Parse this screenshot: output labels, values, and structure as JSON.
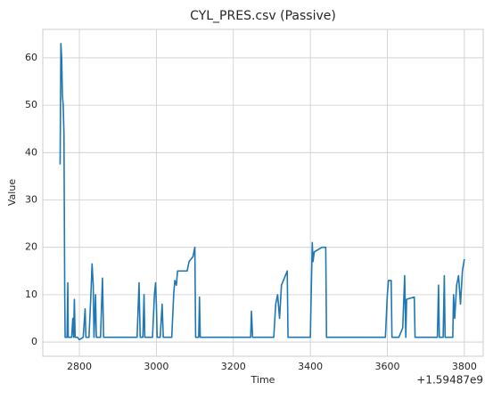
{
  "chart_data": {
    "type": "line",
    "title": "CYL_PRES.csv (Passive)",
    "x_label": "Time",
    "y_label": "Value",
    "x_offset_label": "+1.59487e9",
    "x": [
      2750,
      2752,
      2754,
      2756,
      2758,
      2760,
      2762,
      2763,
      2768,
      2770,
      2771,
      2780,
      2783,
      2785,
      2787,
      2789,
      2795,
      2800,
      2810,
      2815,
      2817,
      2825,
      2830,
      2833,
      2836,
      2838,
      2842,
      2844,
      2855,
      2860,
      2863,
      2950,
      2955,
      2958,
      2965,
      2968,
      2970,
      2990,
      2995,
      2998,
      3000,
      3002,
      3010,
      3015,
      3018,
      3040,
      3045,
      3048,
      3052,
      3055,
      3080,
      3085,
      3095,
      3100,
      3102,
      3110,
      3112,
      3114,
      3245,
      3247,
      3250,
      3305,
      3310,
      3315,
      3320,
      3325,
      3330,
      3340,
      3342,
      3400,
      3405,
      3407,
      3410,
      3430,
      3440,
      3442,
      3595,
      3600,
      3603,
      3610,
      3612,
      3630,
      3640,
      3645,
      3648,
      3650,
      3670,
      3672,
      3730,
      3733,
      3735,
      3745,
      3748,
      3750,
      3770,
      3772,
      3775,
      3780,
      3785,
      3790,
      3795,
      3800
    ],
    "series": [
      {
        "name": "CYL_PRES",
        "color": "#1f77b4",
        "values": [
          37.5,
          63,
          60,
          52,
          50,
          44,
          10,
          1,
          1,
          12.5,
          1,
          1,
          5,
          1,
          9,
          1,
          1,
          0.5,
          1,
          7,
          1,
          1,
          10,
          16.5,
          12,
          1,
          10,
          1,
          1,
          13.5,
          1,
          1,
          12.5,
          1,
          1,
          10,
          1,
          1,
          10,
          12.5,
          8,
          1,
          1,
          8,
          1,
          1,
          10,
          13,
          12,
          15,
          15,
          17,
          18,
          20,
          1,
          1,
          9.5,
          1,
          1,
          6.5,
          1,
          1,
          8,
          10,
          5,
          12,
          13,
          15,
          1,
          1,
          21,
          17,
          19,
          20,
          20,
          1,
          1,
          10,
          13,
          13,
          1,
          1,
          3,
          14,
          1,
          9,
          9.5,
          1,
          1,
          12,
          1,
          1,
          14,
          1,
          1,
          10,
          5,
          12,
          14,
          8,
          15,
          17.5
        ]
      }
    ],
    "xlim": [
      2705,
      3849
    ],
    "xticks": [
      2800,
      3000,
      3200,
      3400,
      3600,
      3800
    ],
    "ylim": [
      -3,
      66
    ],
    "yticks": [
      0,
      10,
      20,
      30,
      40,
      50,
      60
    ],
    "grid": true
  }
}
